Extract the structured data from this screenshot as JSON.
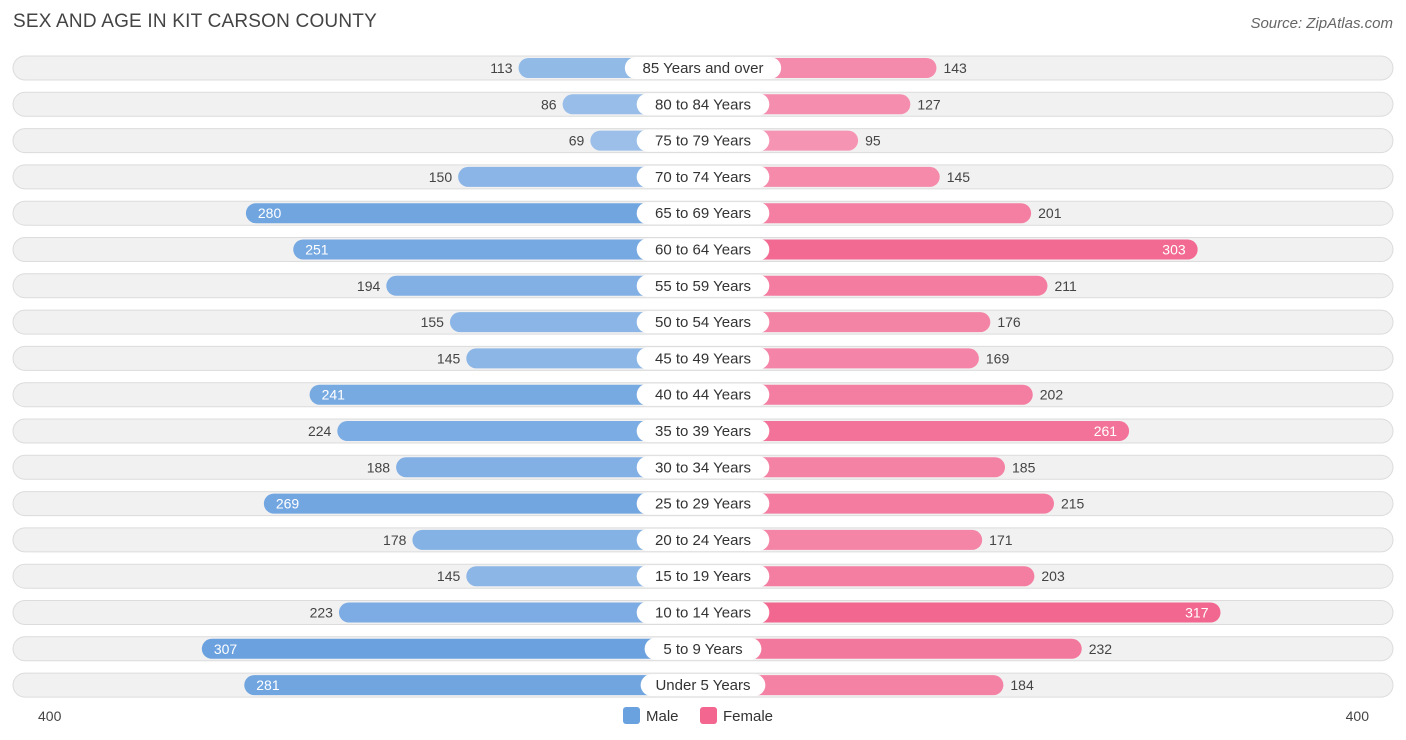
{
  "title": "SEX AND AGE IN KIT CARSON COUNTY",
  "source": "Source: ZipAtlas.com",
  "colors": {
    "male_light": "#a9c8ec",
    "male_dark": "#6aa1df",
    "female_light": "#f7a8c3",
    "female_dark": "#f2668f"
  },
  "chart_data": {
    "type": "bar",
    "orientation": "horizontal-diverging",
    "categories": [
      "85 Years and over",
      "80 to 84 Years",
      "75 to 79 Years",
      "70 to 74 Years",
      "65 to 69 Years",
      "60 to 64 Years",
      "55 to 59 Years",
      "50 to 54 Years",
      "45 to 49 Years",
      "40 to 44 Years",
      "35 to 39 Years",
      "30 to 34 Years",
      "25 to 29 Years",
      "20 to 24 Years",
      "15 to 19 Years",
      "10 to 14 Years",
      "5 to 9 Years",
      "Under 5 Years"
    ],
    "series": [
      {
        "name": "Male",
        "values": [
          113,
          86,
          69,
          150,
          280,
          251,
          194,
          155,
          145,
          241,
          224,
          188,
          269,
          178,
          145,
          223,
          307,
          281
        ]
      },
      {
        "name": "Female",
        "values": [
          143,
          127,
          95,
          145,
          201,
          303,
          211,
          176,
          169,
          202,
          261,
          185,
          215,
          171,
          203,
          317,
          232,
          184
        ]
      }
    ],
    "axis": {
      "left_label": "400",
      "right_label": "400",
      "max": 400
    },
    "legend": {
      "position": "bottom-center",
      "items": [
        "Male",
        "Female"
      ]
    },
    "inside_label_threshold": 240
  }
}
